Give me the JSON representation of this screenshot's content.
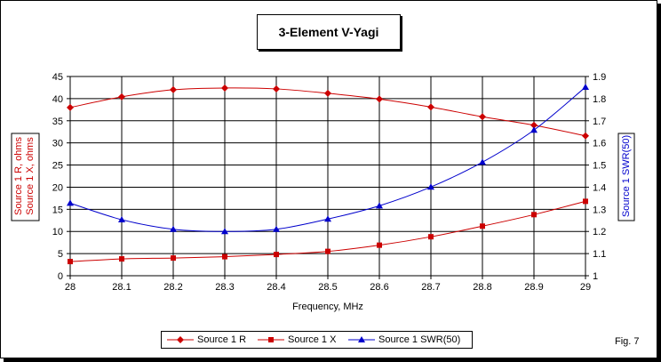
{
  "figure_label": "Fig. 7",
  "chart_data": {
    "type": "line",
    "title": "3-Element V-Yagi",
    "xlabel": "Frequency, MHz",
    "ylabel_left": [
      "Source 1 R,  ohms",
      "Source 1 X,  ohms"
    ],
    "ylabel_right": "Source 1 SWR(50)",
    "x": [
      28,
      28.1,
      28.2,
      28.3,
      28.4,
      28.5,
      28.6,
      28.7,
      28.8,
      28.9,
      29
    ],
    "x_tick_labels": [
      "28",
      "28.1",
      "28.2",
      "28.3",
      "28.4",
      "28.5",
      "28.6",
      "28.7",
      "28.8",
      "28.9",
      "29"
    ],
    "xlim": [
      28,
      29
    ],
    "ylim_left": [
      0,
      45
    ],
    "y_left_ticks": [
      0,
      5,
      10,
      15,
      20,
      25,
      30,
      35,
      40,
      45
    ],
    "ylim_right": [
      1,
      1.9
    ],
    "y_right_ticks": [
      "1",
      "1.1",
      "1.2",
      "1.3",
      "1.4",
      "1.5",
      "1.6",
      "1.7",
      "1.8",
      "1.9"
    ],
    "grid": true,
    "legend_position": "bottom",
    "series": [
      {
        "name": "Source 1 R",
        "axis": "left",
        "color": "#cc0000",
        "marker": "diamond",
        "values": [
          38.0,
          40.4,
          42.0,
          42.4,
          42.2,
          41.2,
          39.9,
          38.1,
          35.9,
          34.0,
          31.6
        ]
      },
      {
        "name": "Source 1 X",
        "axis": "left",
        "color": "#cc0000",
        "marker": "square",
        "values": [
          3.2,
          3.8,
          4.0,
          4.3,
          4.8,
          5.5,
          6.9,
          8.8,
          11.2,
          13.8,
          16.8
        ]
      },
      {
        "name": "Source 1 SWR(50)",
        "axis": "right",
        "color": "#0000cc",
        "marker": "triangle",
        "values": [
          1.328,
          1.253,
          1.21,
          1.2,
          1.21,
          1.256,
          1.316,
          1.401,
          1.513,
          1.658,
          1.852
        ]
      }
    ]
  }
}
